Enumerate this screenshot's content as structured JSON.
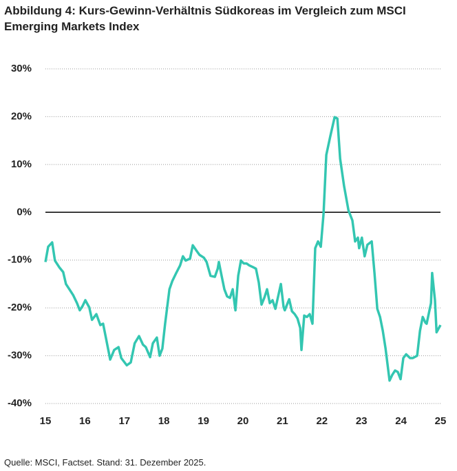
{
  "chart_data": {
    "type": "line",
    "title": "Abbildung 4: Kurs-Gewinn-Verhältnis Südkoreas im Vergleich zum MSCI Emerging Markets Index",
    "source": "Quelle: MSCI, Factset. Stand: 31. Dezember 2025.",
    "x": [
      15.0,
      15.07,
      15.17,
      15.24,
      15.35,
      15.45,
      15.52,
      15.59,
      15.7,
      15.8,
      15.87,
      15.94,
      16.01,
      16.11,
      16.18,
      16.29,
      16.39,
      16.46,
      16.53,
      16.64,
      16.74,
      16.85,
      16.92,
      17.06,
      17.16,
      17.26,
      17.37,
      17.47,
      17.54,
      17.65,
      17.72,
      17.82,
      17.89,
      17.96,
      18.03,
      18.14,
      18.21,
      18.31,
      18.41,
      18.48,
      18.55,
      18.66,
      18.73,
      18.83,
      18.9,
      19.01,
      19.08,
      19.18,
      19.29,
      19.36,
      19.39,
      19.46,
      19.53,
      19.6,
      19.67,
      19.74,
      19.81,
      19.88,
      19.95,
      20.02,
      20.09,
      20.16,
      20.26,
      20.33,
      20.4,
      20.47,
      20.54,
      20.61,
      20.68,
      20.75,
      20.82,
      20.89,
      20.96,
      21.03,
      21.06,
      21.13,
      21.17,
      21.24,
      21.31,
      21.38,
      21.45,
      21.48,
      21.55,
      21.62,
      21.69,
      21.76,
      21.83,
      21.9,
      21.97,
      22.04,
      22.11,
      22.21,
      22.32,
      22.39,
      22.46,
      22.56,
      22.67,
      22.77,
      22.84,
      22.91,
      22.94,
      23.01,
      23.08,
      23.15,
      23.26,
      23.33,
      23.4,
      23.47,
      23.54,
      23.61,
      23.71,
      23.78,
      23.85,
      23.92,
      23.99,
      24.06,
      24.13,
      24.23,
      24.3,
      24.41,
      24.48,
      24.55,
      24.62,
      24.65,
      24.76,
      24.79,
      24.86,
      24.9,
      25.0
    ],
    "series": [
      {
        "color": "#33c6b1",
        "values": [
          -10.4,
          -7.2,
          -6.3,
          -10.1,
          -11.5,
          -12.5,
          -15.0,
          -15.9,
          -17.3,
          -19.0,
          -20.5,
          -19.6,
          -18.4,
          -19.9,
          -22.5,
          -21.3,
          -23.6,
          -23.3,
          -26.2,
          -30.8,
          -28.8,
          -28.2,
          -30.5,
          -32.0,
          -31.4,
          -27.4,
          -25.9,
          -27.7,
          -28.2,
          -30.3,
          -27.4,
          -26.2,
          -30.0,
          -28.5,
          -23.3,
          -16.1,
          -14.4,
          -12.7,
          -11.1,
          -9.2,
          -10.1,
          -9.7,
          -6.9,
          -8.1,
          -8.9,
          -9.5,
          -10.4,
          -13.3,
          -13.5,
          -11.8,
          -10.4,
          -13.3,
          -16.1,
          -17.6,
          -17.9,
          -16.1,
          -20.5,
          -13.3,
          -10.1,
          -10.7,
          -10.7,
          -11.1,
          -11.5,
          -11.8,
          -14.7,
          -19.3,
          -17.9,
          -16.1,
          -19.0,
          -18.4,
          -20.2,
          -17.6,
          -15.0,
          -19.9,
          -20.5,
          -19.0,
          -18.2,
          -20.7,
          -21.3,
          -22.2,
          -24.2,
          -28.8,
          -21.6,
          -21.9,
          -21.3,
          -23.3,
          -7.5,
          -6.1,
          -7.2,
          -0.3,
          12.0,
          15.9,
          19.9,
          19.6,
          11.2,
          5.5,
          0.4,
          -1.7,
          -6.1,
          -5.3,
          -7.5,
          -5.3,
          -9.2,
          -6.8,
          -6.1,
          -12.7,
          -20.2,
          -21.9,
          -24.8,
          -28.5,
          -35.2,
          -34.0,
          -33.1,
          -33.4,
          -34.9,
          -30.5,
          -29.7,
          -30.5,
          -30.5,
          -30.0,
          -24.8,
          -21.9,
          -23.1,
          -23.3,
          -19.0,
          -12.7,
          -18.4,
          -25.1,
          -23.6
        ]
      }
    ],
    "xlim": [
      15,
      25
    ],
    "xticks": [
      15,
      16,
      17,
      18,
      19,
      20,
      21,
      22,
      23,
      24,
      25
    ],
    "ylim": [
      -40,
      30
    ],
    "yticks": [
      {
        "value": -40,
        "label": "-40%"
      },
      {
        "value": -30,
        "label": "-30%"
      },
      {
        "value": -20,
        "label": "-20%"
      },
      {
        "value": -10,
        "label": "-10%"
      },
      {
        "value": 0,
        "label": "0%"
      },
      {
        "value": 10,
        "label": "10%"
      },
      {
        "value": 20,
        "label": "20%"
      },
      {
        "value": 30,
        "label": "30%"
      }
    ],
    "grid": true
  }
}
